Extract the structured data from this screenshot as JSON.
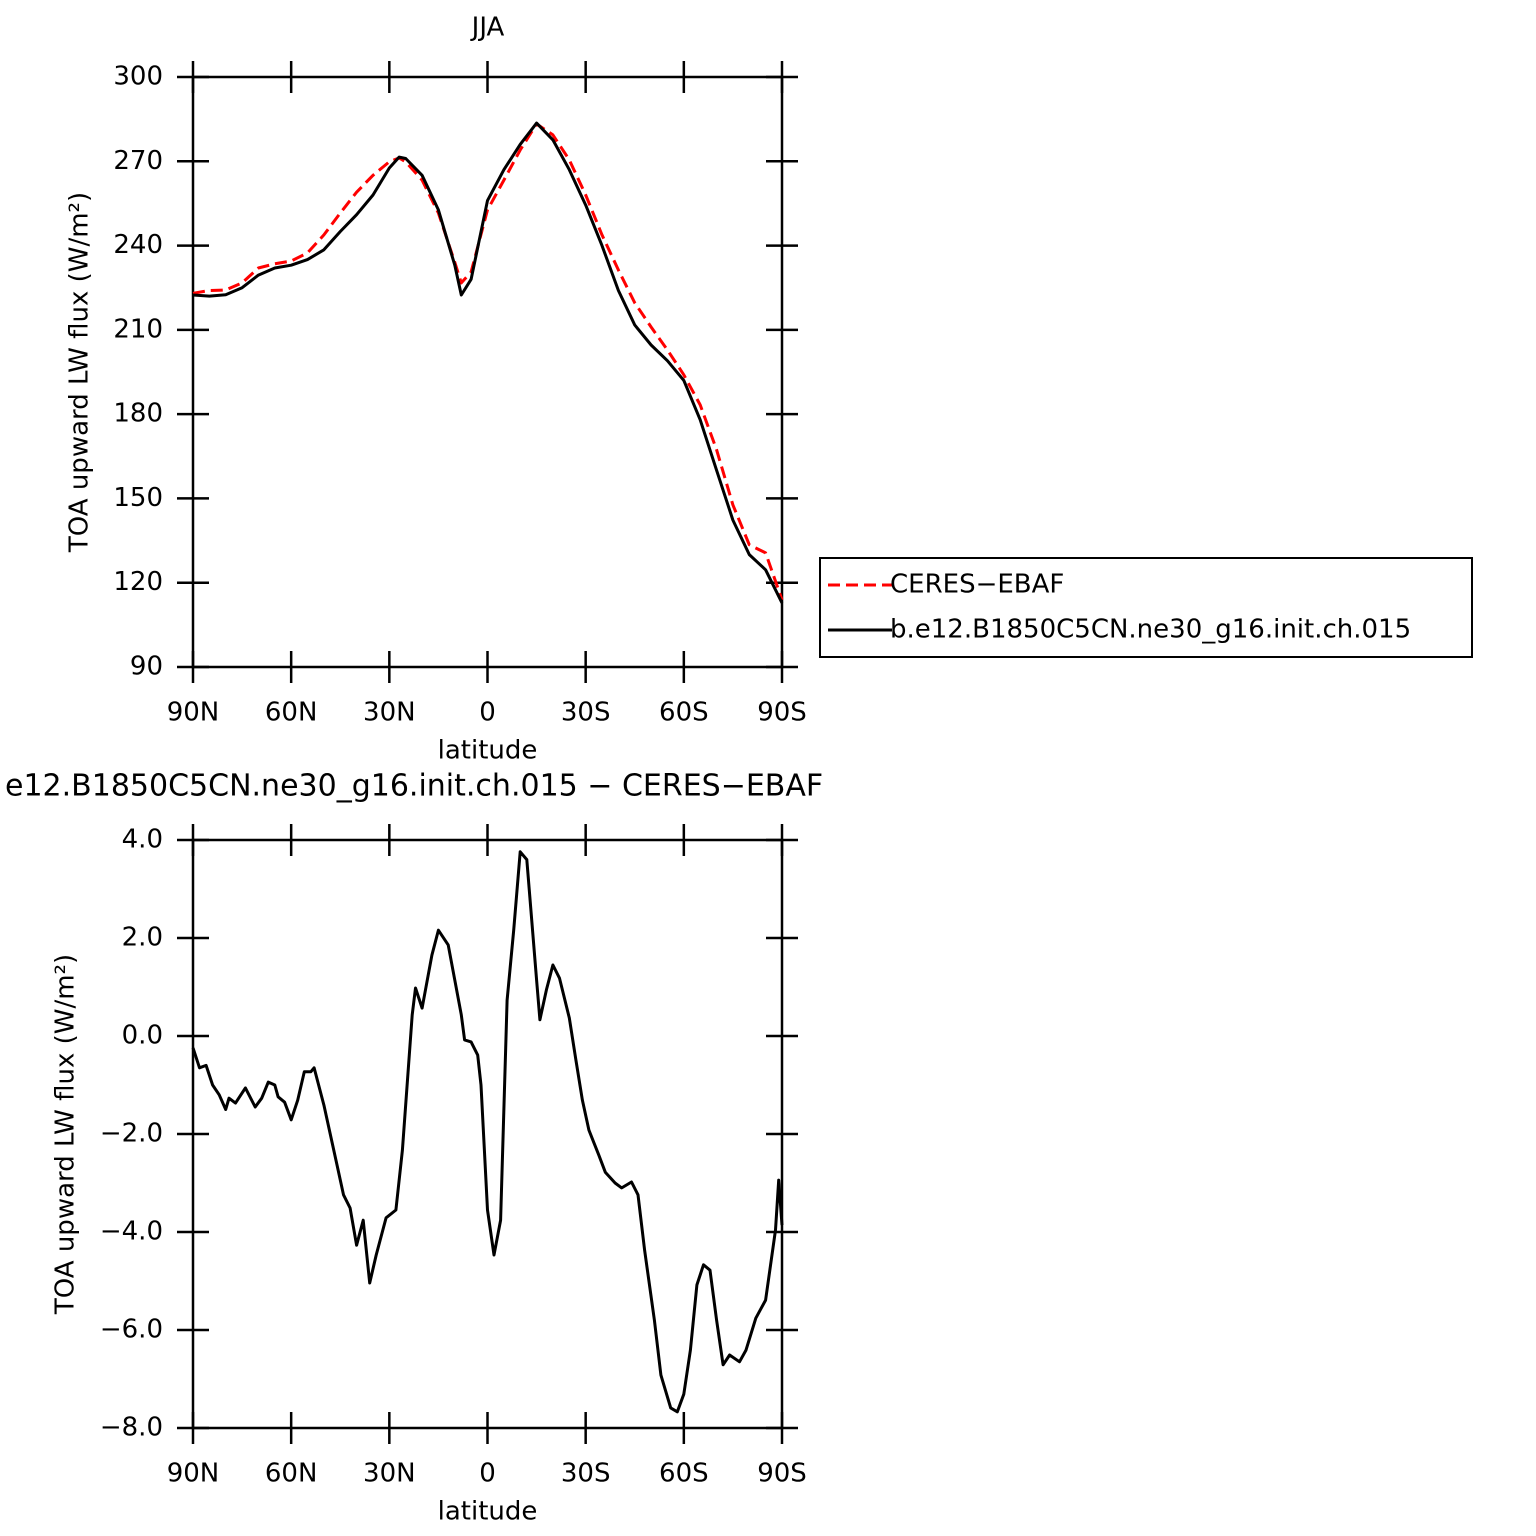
{
  "chart_data": [
    {
      "type": "line",
      "title": "JJA",
      "xlabel": "latitude",
      "ylabel": "TOA upward LW flux (W/m²)",
      "x": [
        90,
        85,
        80,
        75,
        70,
        65,
        60,
        55,
        50,
        45,
        40,
        35,
        30,
        27,
        25,
        20,
        15,
        10,
        8,
        5,
        0,
        -5,
        -10,
        -15,
        -20,
        -25,
        -30,
        -35,
        -40,
        -45,
        -50,
        -55,
        -60,
        -65,
        -70,
        -75,
        -80,
        -85,
        -90
      ],
      "series": [
        {
          "name": "CERES−EBAF",
          "color": "#ff0000",
          "style": "dashed",
          "values": [
            223,
            224,
            224.2,
            226.7,
            232,
            233.5,
            234.5,
            237.4,
            243.8,
            251.6,
            259,
            265,
            269.8,
            271.2,
            269.8,
            263.3,
            251.6,
            234,
            226.7,
            230.6,
            252.7,
            263.3,
            274,
            283.3,
            279.4,
            270.5,
            258,
            243.8,
            231.3,
            219.6,
            211,
            202.8,
            194,
            183.3,
            167.3,
            147.7,
            133.5,
            130.6,
            113.9
          ]
        },
        {
          "name": "b.e12.B1850C5CN.ne30_g16.init.ch.015",
          "color": "#000000",
          "style": "solid",
          "values": [
            222.4,
            222,
            222.5,
            225,
            229.5,
            232,
            233,
            235,
            238.5,
            245,
            251,
            258,
            267.6,
            271.5,
            271,
            265,
            252.7,
            233,
            222.4,
            228,
            256,
            267,
            276,
            283.6,
            277.6,
            267,
            254.4,
            240,
            224,
            211.7,
            204.6,
            199,
            192,
            178,
            160,
            142.3,
            130,
            124.6,
            112.8
          ]
        }
      ],
      "xlim": [
        90,
        -90
      ],
      "xticks": [
        {
          "value": 90,
          "label": "90N"
        },
        {
          "value": 60,
          "label": "60N"
        },
        {
          "value": 30,
          "label": "30N"
        },
        0,
        {
          "value": -30,
          "label": "30S"
        },
        {
          "value": -60,
          "label": "60S"
        },
        {
          "value": -90,
          "label": "90S"
        }
      ],
      "ylim": [
        90,
        300
      ],
      "yticks": [
        90,
        120,
        150,
        180,
        210,
        240,
        270,
        300
      ],
      "legend": "outside-right"
    },
    {
      "type": "line",
      "title": "e12.B1850C5CN.ne30_g16.init.ch.015 − CERES−EBAF",
      "xlabel": "latitude",
      "ylabel": "TOA upward LW flux (W/m²)",
      "x": [
        90,
        88,
        86,
        84,
        82,
        80,
        79,
        77,
        74,
        71,
        69,
        67,
        65,
        64,
        62,
        60,
        58,
        56,
        54,
        53,
        50,
        46,
        44,
        42,
        40,
        38,
        36,
        34,
        31,
        28,
        26,
        23,
        22,
        20,
        17,
        15,
        12,
        10,
        8,
        7,
        5,
        3,
        2,
        0,
        -2,
        -4,
        -6,
        -8,
        -10,
        -12,
        -15,
        -16,
        -18,
        -20,
        -22,
        -25,
        -27,
        -29,
        -31,
        -34,
        -36,
        -39,
        -41,
        -44,
        -46,
        -48,
        -51,
        -53,
        -56,
        -58,
        -60,
        -62,
        -64,
        -66,
        -68,
        -70,
        -72,
        -74,
        -77,
        -79,
        -82,
        -85,
        -88,
        -89,
        -90
      ],
      "values": [
        -0.24,
        -0.65,
        -0.6,
        -1.0,
        -1.2,
        -1.5,
        -1.27,
        -1.37,
        -1.06,
        -1.45,
        -1.27,
        -0.94,
        -1.0,
        -1.24,
        -1.35,
        -1.71,
        -1.31,
        -0.73,
        -0.73,
        -0.65,
        -1.41,
        -2.63,
        -3.24,
        -3.51,
        -4.27,
        -3.76,
        -5.04,
        -4.47,
        -3.71,
        -3.55,
        -2.33,
        0.43,
        0.98,
        0.57,
        1.65,
        2.16,
        1.86,
        1.14,
        0.43,
        -0.08,
        -0.12,
        -0.39,
        -1.0,
        -3.55,
        -4.47,
        -3.76,
        0.73,
        2.16,
        3.76,
        3.6,
        1.14,
        0.33,
        0.94,
        1.45,
        1.18,
        0.37,
        -0.49,
        -1.31,
        -1.92,
        -2.43,
        -2.78,
        -3.0,
        -3.1,
        -2.98,
        -3.24,
        -4.37,
        -5.8,
        -6.92,
        -7.59,
        -7.67,
        -7.31,
        -6.41,
        -5.08,
        -4.67,
        -4.78,
        -5.8,
        -6.71,
        -6.51,
        -6.65,
        -6.41,
        -5.76,
        -5.39,
        -3.96,
        -2.94,
        -3.86
      ],
      "color": "#000000",
      "xlim": [
        90,
        -90
      ],
      "xticks": [
        {
          "value": 90,
          "label": "90N"
        },
        {
          "value": 60,
          "label": "60N"
        },
        {
          "value": 30,
          "label": "30N"
        },
        0,
        {
          "value": -30,
          "label": "30S"
        },
        {
          "value": -60,
          "label": "60S"
        },
        {
          "value": -90,
          "label": "90S"
        }
      ],
      "ylim": [
        -8,
        4
      ],
      "yticks": [
        {
          "value": -8,
          "label": "−8.0"
        },
        {
          "value": -6,
          "label": "−6.0"
        },
        {
          "value": -4,
          "label": "−4.0"
        },
        {
          "value": -2,
          "label": "−2.0"
        },
        {
          "value": 0,
          "label": "0.0"
        },
        {
          "value": 2,
          "label": "2.0"
        },
        {
          "value": 4,
          "label": "4.0"
        }
      ]
    }
  ]
}
